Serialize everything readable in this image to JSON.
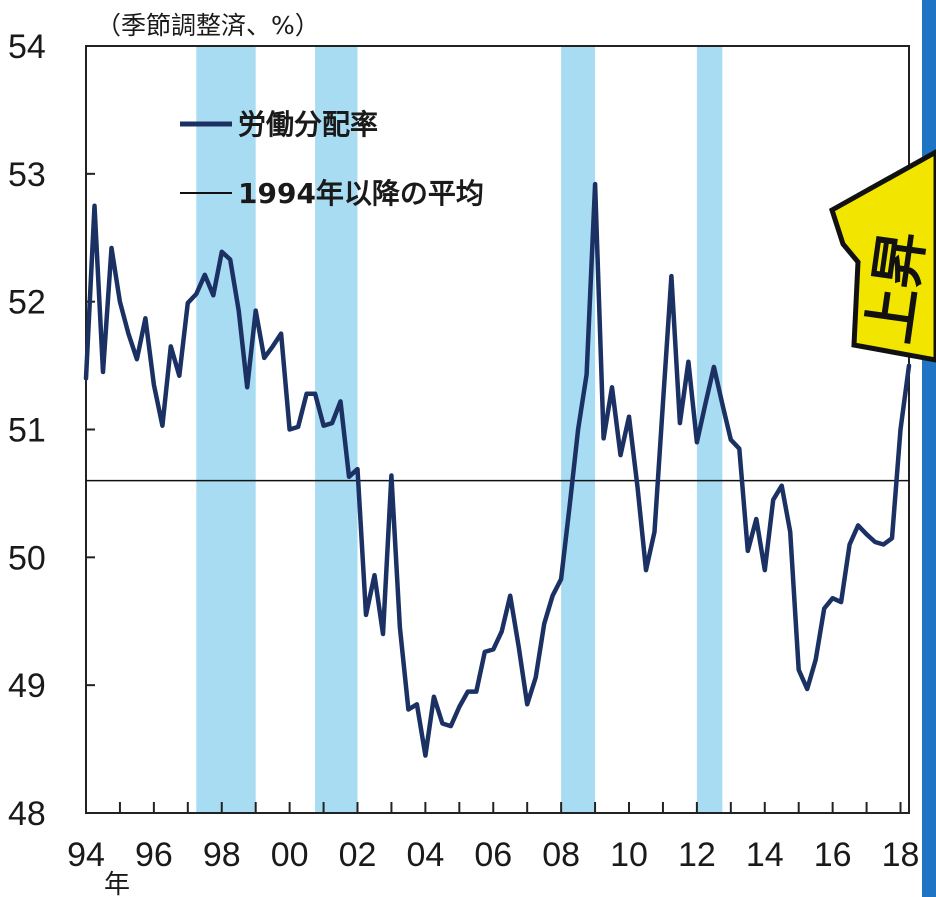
{
  "chart_data": {
    "type": "line",
    "unit_label": "（季節調整済、%）",
    "x_unit_label": "年",
    "yticks": [
      "48",
      "49",
      "50",
      "51",
      "52",
      "53",
      "54"
    ],
    "ylim": [
      48,
      54
    ],
    "xlim": [
      1994.0,
      2018.25
    ],
    "xticks": [
      {
        "value": 1994,
        "label": "94"
      },
      {
        "value": 1996,
        "label": "96"
      },
      {
        "value": 1998,
        "label": "98"
      },
      {
        "value": 2000,
        "label": "00"
      },
      {
        "value": 2002,
        "label": "02"
      },
      {
        "value": 2004,
        "label": "04"
      },
      {
        "value": 2006,
        "label": "06"
      },
      {
        "value": 2008,
        "label": "08"
      },
      {
        "value": 2010,
        "label": "10"
      },
      {
        "value": 2012,
        "label": "12"
      },
      {
        "value": 2014,
        "label": "14"
      },
      {
        "value": 2016,
        "label": "16"
      },
      {
        "value": 2018,
        "label": "18"
      }
    ],
    "recessions": [
      {
        "start": 1997.25,
        "end": 1999.0
      },
      {
        "start": 2000.75,
        "end": 2002.0
      },
      {
        "start": 2008.0,
        "end": 2009.0
      },
      {
        "start": 2012.0,
        "end": 2012.75
      }
    ],
    "legend": {
      "series_label": "労働分配率",
      "average_label": "1994年以降の平均"
    },
    "average": 50.6,
    "colors": {
      "line": "#1b3163",
      "average": "#111111",
      "recession": "#a8dcf3",
      "axis": "#222222"
    },
    "series": [
      {
        "name": "労働分配率",
        "x": [
          1994.0,
          1994.25,
          1994.5,
          1994.75,
          1995.0,
          1995.25,
          1995.5,
          1995.75,
          1996.0,
          1996.25,
          1996.5,
          1996.75,
          1997.0,
          1997.25,
          1997.5,
          1997.75,
          1998.0,
          1998.25,
          1998.5,
          1998.75,
          1999.0,
          1999.25,
          1999.5,
          1999.75,
          2000.0,
          2000.25,
          2000.5,
          2000.75,
          2001.0,
          2001.25,
          2001.5,
          2001.75,
          2002.0,
          2002.25,
          2002.5,
          2002.75,
          2003.0,
          2003.25,
          2003.5,
          2003.75,
          2004.0,
          2004.25,
          2004.5,
          2004.75,
          2005.0,
          2005.25,
          2005.5,
          2005.75,
          2006.0,
          2006.25,
          2006.5,
          2006.75,
          2007.0,
          2007.25,
          2007.5,
          2007.75,
          2008.0,
          2008.25,
          2008.5,
          2008.75,
          2009.0,
          2009.25,
          2009.5,
          2009.75,
          2010.0,
          2010.25,
          2010.5,
          2010.75,
          2011.0,
          2011.25,
          2011.5,
          2011.75,
          2012.0,
          2012.25,
          2012.5,
          2012.75,
          2013.0,
          2013.25,
          2013.5,
          2013.75,
          2014.0,
          2014.25,
          2014.5,
          2014.75,
          2015.0,
          2015.25,
          2015.5,
          2015.75,
          2016.0,
          2016.25,
          2016.5,
          2016.75,
          2017.0,
          2017.25,
          2017.5,
          2017.75,
          2018.0,
          2018.25
        ],
        "values": [
          51.4,
          52.75,
          51.45,
          52.42,
          52.0,
          51.75,
          51.55,
          51.87,
          51.35,
          51.03,
          51.65,
          51.42,
          51.99,
          52.06,
          52.21,
          52.05,
          52.39,
          52.33,
          51.93,
          51.33,
          51.93,
          51.56,
          51.65,
          51.75,
          51.0,
          51.02,
          51.28,
          51.28,
          51.03,
          51.05,
          51.22,
          50.63,
          50.69,
          49.55,
          49.86,
          49.4,
          50.64,
          49.45,
          48.81,
          48.85,
          48.45,
          48.91,
          48.7,
          48.68,
          48.83,
          48.95,
          48.95,
          49.26,
          49.28,
          49.42,
          49.7,
          49.3,
          48.85,
          49.06,
          49.48,
          49.7,
          49.83,
          50.4,
          51.0,
          51.43,
          52.92,
          50.93,
          51.33,
          50.8,
          51.1,
          50.55,
          49.9,
          50.2,
          51.2,
          52.2,
          51.05,
          51.53,
          50.9,
          51.2,
          51.49,
          51.2,
          50.92,
          50.85,
          50.05,
          50.3,
          49.9,
          50.45,
          50.56,
          50.2,
          49.12,
          48.97,
          49.2,
          49.6,
          49.68,
          49.65,
          50.1,
          50.25,
          50.18,
          50.12,
          50.1,
          50.15,
          51.0,
          51.5
        ]
      }
    ]
  },
  "callout": {
    "text": "上昇",
    "colors": {
      "fill": "#f2e600",
      "outline": "#111111",
      "text": "#111111"
    }
  }
}
